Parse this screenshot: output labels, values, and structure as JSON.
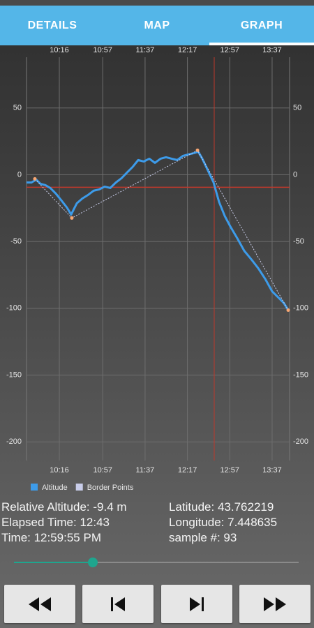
{
  "tabs": [
    "DETAILS",
    "MAP",
    "GRAPH"
  ],
  "chart_data": {
    "type": "line",
    "xlim": [
      585,
      833.5
    ],
    "ylim": [
      -214,
      88
    ],
    "xticks": [
      {
        "value": 616,
        "label": "10:16"
      },
      {
        "value": 657,
        "label": "10:57"
      },
      {
        "value": 697,
        "label": "11:37"
      },
      {
        "value": 737,
        "label": "12:17"
      },
      {
        "value": 777,
        "label": "12:57"
      },
      {
        "value": 817,
        "label": "13:37"
      }
    ],
    "yticks": [
      50,
      0,
      -50,
      -100,
      -150,
      -200
    ],
    "grid": true,
    "series": [
      {
        "name": "Altitude",
        "color": "#3d9be9",
        "x": [
          585,
          589.6,
          594.2,
          598.2,
          602.8,
          607.4,
          612.7,
          618,
          623.2,
          627.2,
          629.8,
          632.5,
          637.7,
          643,
          648.3,
          653.6,
          658.8,
          664.1,
          669.4,
          674.7,
          679.9,
          685.2,
          690.5,
          695.7,
          701,
          706.3,
          711.6,
          716.8,
          722.1,
          727.4,
          732.7,
          737.9,
          743.2,
          747.2,
          751.1,
          756.4,
          761.7,
          766.9,
          772.2,
          777.5,
          784.1,
          790.7,
          797.3,
          803.9,
          810.4,
          817,
          823.6,
          828.2,
          832.2
        ],
        "values": [
          -5.8,
          -5.8,
          -3.7,
          -6.8,
          -7.8,
          -9.9,
          -14.1,
          -19.3,
          -24.6,
          -29.8,
          -25.6,
          -21.4,
          -17.8,
          -15.2,
          -12,
          -11,
          -8.9,
          -9.9,
          -5.8,
          -2.6,
          1.6,
          5.8,
          11,
          9.9,
          12,
          8.9,
          12,
          13.1,
          12,
          11,
          14.1,
          15.2,
          16.2,
          17.3,
          12,
          3.1,
          -5.8,
          -20.4,
          -30.8,
          -38.7,
          -47.6,
          -57,
          -63.3,
          -70,
          -77.9,
          -87.3,
          -92.5,
          -96.2,
          -101.4
        ]
      },
      {
        "name": "Border Points",
        "color": "#c9cdea",
        "marker_color": "#f7a672",
        "x": [
          592.9,
          627.8,
          746.5,
          832.2
        ],
        "values": [
          -3.1,
          -32.4,
          18.3,
          -101.4
        ]
      }
    ],
    "cursor": {
      "x": 762.3,
      "y": -9.4,
      "color": "#c0392b"
    }
  },
  "info": {
    "left": [
      "Relative Altitude: -9.4 m",
      "Elapsed Time: 12:43",
      "Time: 12:59:55 PM"
    ],
    "right": [
      "Latitude: 43.762219",
      "Longitude: 7.448635",
      "sample #: 93"
    ]
  }
}
